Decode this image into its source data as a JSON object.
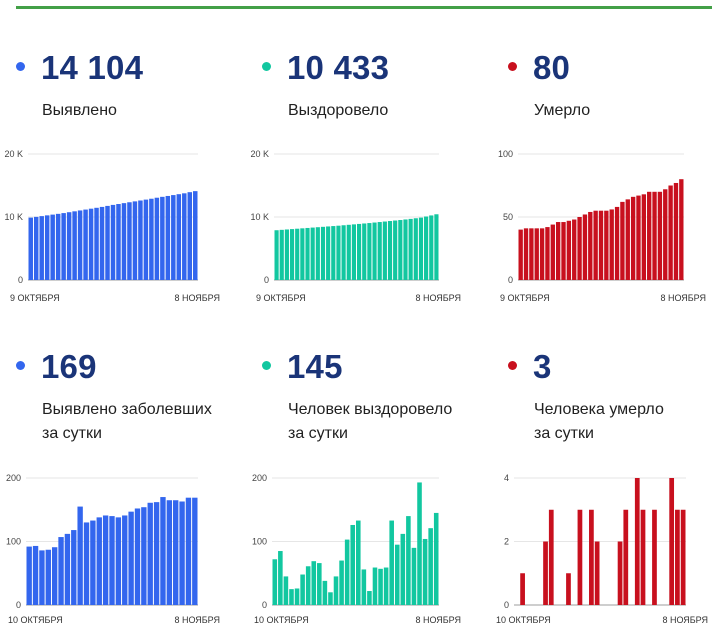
{
  "colors": {
    "blue": "#3366ee",
    "green": "#12c7a0",
    "red": "#c8101e",
    "number": "#1a3478",
    "accent_line": "#43a047"
  },
  "panels": [
    {
      "number": "14 104",
      "label_lines": [
        "Выявлено"
      ],
      "color": "#3366ee"
    },
    {
      "number": "10 433",
      "label_lines": [
        "Выздоровело"
      ],
      "color": "#12c7a0"
    },
    {
      "number": "80",
      "label_lines": [
        "Умерло"
      ],
      "color": "#c8101e"
    },
    {
      "number": "169",
      "label_lines": [
        "Выявлено заболевших",
        "за сутки"
      ],
      "color": "#3366ee"
    },
    {
      "number": "145",
      "label_lines": [
        "Человек выздоровело",
        "за сутки"
      ],
      "color": "#12c7a0"
    },
    {
      "number": "3",
      "label_lines": [
        "Человека умерло",
        "за сутки"
      ],
      "color": "#c8101e"
    }
  ],
  "chart_data": [
    {
      "type": "bar",
      "color": "#3366ee",
      "x_labels": [
        "9 ОКТЯБРЯ",
        "8 НОЯБРЯ"
      ],
      "y_ticks": [
        {
          "v": 0,
          "t": "0"
        },
        {
          "v": 10000,
          "t": "10 K"
        },
        {
          "v": 20000,
          "t": "20 K"
        }
      ],
      "ylim": [
        0,
        20000
      ],
      "values": [
        9900,
        10020,
        10140,
        10260,
        10380,
        10500,
        10620,
        10760,
        10900,
        11040,
        11180,
        11320,
        11460,
        11600,
        11760,
        11920,
        12060,
        12200,
        12340,
        12480,
        12620,
        12760,
        12900,
        13060,
        13200,
        13340,
        13480,
        13620,
        13760,
        13940,
        14104
      ]
    },
    {
      "type": "bar",
      "color": "#12c7a0",
      "x_labels": [
        "9 ОКТЯБРЯ",
        "8 НОЯБРЯ"
      ],
      "y_ticks": [
        {
          "v": 0,
          "t": "0"
        },
        {
          "v": 10000,
          "t": "10 K"
        },
        {
          "v": 20000,
          "t": "20 K"
        }
      ],
      "ylim": [
        0,
        20000
      ],
      "values": [
        7900,
        7960,
        8020,
        8080,
        8140,
        8200,
        8260,
        8320,
        8380,
        8440,
        8500,
        8560,
        8620,
        8690,
        8760,
        8830,
        8900,
        8970,
        9040,
        9120,
        9200,
        9280,
        9360,
        9440,
        9520,
        9610,
        9700,
        9800,
        9900,
        10080,
        10250,
        10433
      ]
    },
    {
      "type": "bar",
      "color": "#c8101e",
      "x_labels": [
        "9 ОКТЯБРЯ",
        "8 НОЯБРЯ"
      ],
      "y_ticks": [
        {
          "v": 0,
          "t": "0"
        },
        {
          "v": 50,
          "t": "50"
        },
        {
          "v": 100,
          "t": "100"
        }
      ],
      "ylim": [
        0,
        100
      ],
      "values": [
        40,
        41,
        41,
        41,
        41,
        42,
        44,
        46,
        46,
        47,
        48,
        50,
        52,
        54,
        55,
        55,
        55,
        56,
        58,
        62,
        64,
        66,
        67,
        68,
        70,
        70,
        70,
        72,
        75,
        77,
        80
      ]
    },
    {
      "type": "bar",
      "color": "#3366ee",
      "x_labels": [
        "10 ОКТЯБРЯ",
        "8 НОЯБРЯ"
      ],
      "y_ticks": [
        {
          "v": 0,
          "t": "0"
        },
        {
          "v": 100,
          "t": "100"
        },
        {
          "v": 200,
          "t": "200"
        }
      ],
      "ylim": [
        0,
        200
      ],
      "values": [
        92,
        93,
        86,
        87,
        91,
        107,
        112,
        118,
        155,
        130,
        133,
        138,
        141,
        140,
        138,
        141,
        147,
        152,
        154,
        161,
        162,
        170,
        165,
        165,
        163,
        169,
        169
      ]
    },
    {
      "type": "bar",
      "color": "#12c7a0",
      "x_labels": [
        "10 ОКТЯБРЯ",
        "8 НОЯБРЯ"
      ],
      "y_ticks": [
        {
          "v": 0,
          "t": "0"
        },
        {
          "v": 100,
          "t": "100"
        },
        {
          "v": 200,
          "t": "200"
        }
      ],
      "ylim": [
        0,
        200
      ],
      "values": [
        72,
        85,
        45,
        25,
        26,
        48,
        61,
        69,
        66,
        38,
        20,
        45,
        70,
        103,
        126,
        133,
        56,
        22,
        59,
        57,
        59,
        133,
        95,
        112,
        140,
        90,
        193,
        104,
        121,
        145
      ]
    },
    {
      "type": "bar",
      "color": "#c8101e",
      "x_labels": [
        "10 ОКТЯБРЯ",
        "8 НОЯБРЯ"
      ],
      "y_ticks": [
        {
          "v": 0,
          "t": "0"
        },
        {
          "v": 2,
          "t": "2"
        },
        {
          "v": 4,
          "t": "4"
        }
      ],
      "ylim": [
        0,
        4
      ],
      "values": [
        0,
        1,
        0,
        0,
        0,
        2,
        3,
        0,
        0,
        1,
        0,
        3,
        0,
        3,
        2,
        0,
        0,
        0,
        2,
        3,
        0,
        4,
        3,
        0,
        3,
        0,
        0,
        4,
        3,
        3
      ]
    }
  ]
}
